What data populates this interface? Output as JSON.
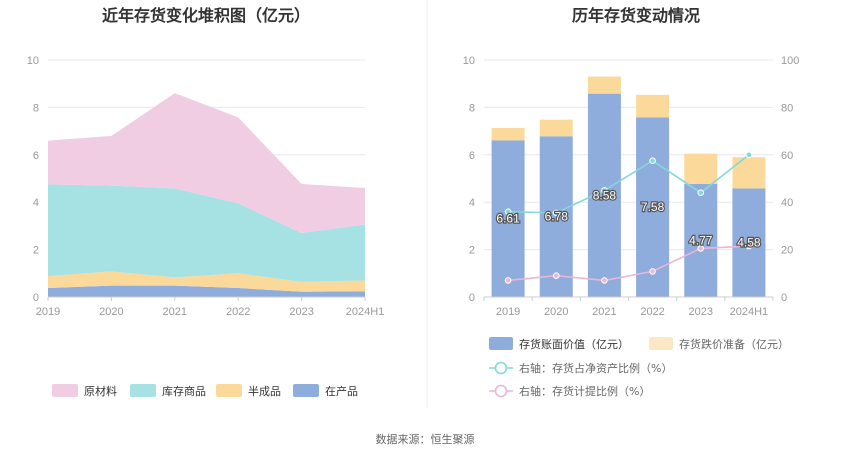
{
  "source": "数据来源：恒生聚源",
  "chart_data": [
    {
      "type": "area",
      "stacked": true,
      "title": "近年存货变化堆积图（亿元）",
      "categories": [
        "2019",
        "2020",
        "2021",
        "2022",
        "2023",
        "2024H1"
      ],
      "ylim": [
        0,
        10
      ],
      "yticks": [
        0,
        2,
        4,
        6,
        8,
        10
      ],
      "grid": true,
      "legend_position": "bottom",
      "series": [
        {
          "name": "在产品",
          "color": "#8eacdc",
          "values": [
            0.38,
            0.48,
            0.48,
            0.38,
            0.22,
            0.24
          ]
        },
        {
          "name": "半成品",
          "color": "#fbd99b",
          "values": [
            0.5,
            0.6,
            0.35,
            0.62,
            0.42,
            0.46
          ]
        },
        {
          "name": "库存商品",
          "color": "#a6e1e3",
          "values": [
            3.87,
            3.62,
            3.75,
            2.95,
            2.06,
            2.36
          ]
        },
        {
          "name": "原材料",
          "color": "#f1cde4",
          "values": [
            1.85,
            2.1,
            4.02,
            3.63,
            2.07,
            1.54
          ]
        }
      ]
    },
    {
      "type": "bar",
      "stacked": true,
      "title": "历年存货变动情况",
      "categories": [
        "2019",
        "2020",
        "2021",
        "2022",
        "2023",
        "2024H1"
      ],
      "ylim": [
        0,
        10
      ],
      "yticks": [
        0,
        2,
        4,
        6,
        8,
        10
      ],
      "y2lim": [
        0,
        100
      ],
      "y2ticks": [
        0,
        20,
        40,
        60,
        80,
        100
      ],
      "grid": true,
      "legend_position": "bottom",
      "series": [
        {
          "name": "存货账面价值（亿元）",
          "color": "#8eacdc",
          "values": [
            6.61,
            6.78,
            8.58,
            7.58,
            4.77,
            4.58
          ],
          "labels": [
            "6.61",
            "6.78",
            "8.58",
            "7.58",
            "4.77",
            "4.58"
          ]
        },
        {
          "name": "存货跌价准备（亿元）",
          "color": "#fbd99b",
          "values": [
            0.52,
            0.7,
            0.72,
            0.95,
            1.28,
            1.32
          ]
        }
      ],
      "line_series": [
        {
          "name": "右轴：存货占净资产比例（%）",
          "color": "#84d8da",
          "axis": "right",
          "values": [
            36,
            35.5,
            45,
            57.5,
            44,
            60
          ]
        },
        {
          "name": "右轴：存货计提比例（%）",
          "color": "#e8b6d8",
          "axis": "right",
          "values": [
            7,
            9,
            7,
            10.8,
            20.5,
            21.5
          ]
        }
      ]
    }
  ]
}
